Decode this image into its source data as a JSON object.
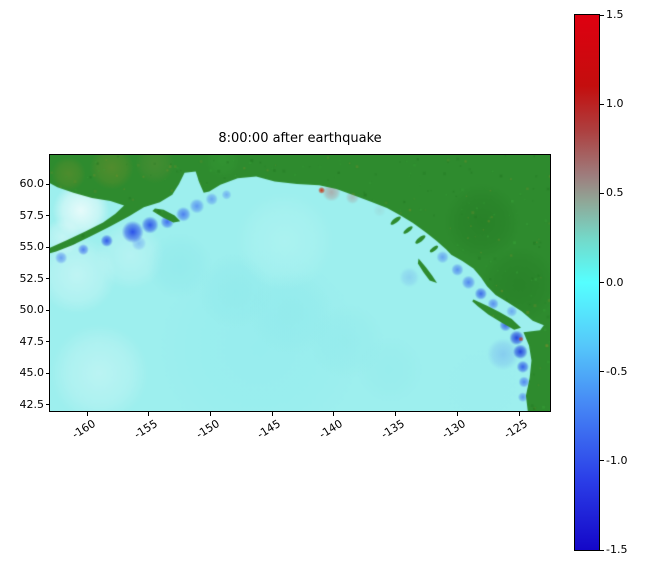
{
  "figure": {
    "title": "8:00:00 after earthquake"
  },
  "chart_data": {
    "type": "heatmap",
    "title": "8:00:00 after earthquake",
    "xlabel": "",
    "ylabel": "",
    "x_ticks": [
      "-160",
      "-155",
      "-150",
      "-145",
      "-140",
      "-135",
      "-130",
      "-125"
    ],
    "y_ticks": [
      "60.0",
      "57.5",
      "55.0",
      "52.5",
      "50.0",
      "47.5",
      "45.0",
      "42.5"
    ],
    "xlim": [
      -163.0,
      -122.5
    ],
    "ylim": [
      42.0,
      62.3
    ],
    "grid": false,
    "legend": "colorbar-right",
    "colorbar": {
      "vmin": -1.5,
      "vmax": 1.5,
      "ticks": [
        "1.5",
        "1.0",
        "0.5",
        "0.0",
        "-0.5",
        "-1.0",
        "-1.5"
      ],
      "stops": [
        {
          "v": 1.5,
          "c": "#de0010"
        },
        {
          "v": 1.1,
          "c": "#c40e0e"
        },
        {
          "v": 0.85,
          "c": "#ad4040"
        },
        {
          "v": 0.6,
          "c": "#9e7d7d"
        },
        {
          "v": 0.45,
          "c": "#8fa898"
        },
        {
          "v": 0.25,
          "c": "#74d8c8"
        },
        {
          "v": 0.0,
          "c": "#55ffff"
        },
        {
          "v": -0.35,
          "c": "#55c8fa"
        },
        {
          "v": -0.7,
          "c": "#4585f5"
        },
        {
          "v": -1.1,
          "c": "#2b3fe8"
        },
        {
          "v": -1.5,
          "c": "#1407c8"
        }
      ]
    },
    "map": {
      "colors": {
        "ocean": "#9defee",
        "land": "#2e8b2e",
        "land_dark": "#1e701e",
        "land_olive": "#7d8f2c",
        "land_light": "#3aa53a"
      },
      "land_polygons": {
        "mainland": [
          [
            -163.0,
            62.3
          ],
          [
            -122.5,
            62.3
          ],
          [
            -122.5,
            42.0
          ],
          [
            -124.3,
            42.0
          ],
          [
            -124.45,
            43.2
          ],
          [
            -124.15,
            44.6
          ],
          [
            -124.0,
            46.0
          ],
          [
            -124.2,
            47.2
          ],
          [
            -124.65,
            48.25
          ],
          [
            -123.3,
            48.4
          ],
          [
            -123.0,
            48.8
          ],
          [
            -123.9,
            49.15
          ],
          [
            -124.8,
            49.9
          ],
          [
            -125.9,
            50.6
          ],
          [
            -126.9,
            51.2
          ],
          [
            -127.6,
            51.9
          ],
          [
            -128.1,
            52.6
          ],
          [
            -128.7,
            53.3
          ],
          [
            -129.6,
            53.9
          ],
          [
            -130.5,
            54.4
          ],
          [
            -130.9,
            54.8
          ],
          [
            -131.7,
            55.5
          ],
          [
            -132.6,
            56.2
          ],
          [
            -133.6,
            56.9
          ],
          [
            -134.6,
            57.5
          ],
          [
            -135.7,
            58.1
          ],
          [
            -137.0,
            58.6
          ],
          [
            -138.4,
            59.1
          ],
          [
            -139.8,
            59.6
          ],
          [
            -141.2,
            59.9
          ],
          [
            -143.0,
            60.0
          ],
          [
            -144.8,
            60.2
          ],
          [
            -146.3,
            60.6
          ],
          [
            -147.8,
            60.45
          ],
          [
            -149.2,
            59.95
          ],
          [
            -150.1,
            59.4
          ],
          [
            -150.55,
            59.3
          ],
          [
            -150.9,
            60.1
          ],
          [
            -151.2,
            61.0
          ],
          [
            -152.1,
            60.9
          ],
          [
            -152.55,
            60.0
          ],
          [
            -153.1,
            59.15
          ],
          [
            -154.1,
            58.55
          ],
          [
            -155.4,
            58.15
          ],
          [
            -156.6,
            57.45
          ],
          [
            -158.1,
            56.65
          ],
          [
            -159.7,
            55.85
          ],
          [
            -161.2,
            55.15
          ],
          [
            -162.5,
            54.65
          ],
          [
            -163.0,
            54.5
          ],
          [
            -163.0,
            54.95
          ],
          [
            -161.6,
            55.55
          ],
          [
            -160.1,
            56.25
          ],
          [
            -158.7,
            56.95
          ],
          [
            -157.7,
            57.65
          ],
          [
            -157.0,
            58.3
          ],
          [
            -158.1,
            58.65
          ],
          [
            -159.6,
            58.9
          ],
          [
            -161.1,
            59.3
          ],
          [
            -162.4,
            59.75
          ],
          [
            -163.0,
            60.05
          ]
        ],
        "vancouver_island": [
          [
            -128.7,
            50.85
          ],
          [
            -127.6,
            50.35
          ],
          [
            -126.6,
            49.85
          ],
          [
            -125.6,
            49.3
          ],
          [
            -124.85,
            48.6
          ],
          [
            -125.4,
            48.45
          ],
          [
            -126.4,
            49.0
          ],
          [
            -127.5,
            49.65
          ],
          [
            -128.35,
            50.3
          ],
          [
            -128.8,
            50.7
          ]
        ],
        "haida_gwaii": [
          [
            -133.15,
            54.1
          ],
          [
            -132.55,
            53.4
          ],
          [
            -132.05,
            52.75
          ],
          [
            -131.65,
            52.15
          ],
          [
            -132.25,
            52.35
          ],
          [
            -132.75,
            53.0
          ],
          [
            -133.2,
            53.7
          ]
        ],
        "kodiak": [
          [
            -154.7,
            57.85
          ],
          [
            -153.85,
            57.35
          ],
          [
            -153.0,
            56.95
          ],
          [
            -152.45,
            57.05
          ],
          [
            -152.9,
            57.5
          ],
          [
            -153.8,
            57.95
          ],
          [
            -154.5,
            58.05
          ]
        ]
      },
      "islets": [
        {
          "x": -135.0,
          "y": 57.1,
          "rx": 0.5,
          "ry": 0.18,
          "rot": -38
        },
        {
          "x": -134.0,
          "y": 56.35,
          "rx": 0.45,
          "ry": 0.16,
          "rot": -38
        },
        {
          "x": -133.0,
          "y": 55.6,
          "rx": 0.5,
          "ry": 0.18,
          "rot": -38
        },
        {
          "x": -131.9,
          "y": 54.85,
          "rx": 0.4,
          "ry": 0.15,
          "rot": -38
        }
      ],
      "texture_blobs": [
        {
          "x": -158.0,
          "y": 61.3,
          "r": 1.8,
          "c": "#7d8f2c",
          "a": 0.45
        },
        {
          "x": -161.5,
          "y": 60.8,
          "r": 1.4,
          "c": "#7d8f2c",
          "a": 0.4
        },
        {
          "x": -154.5,
          "y": 61.6,
          "r": 1.6,
          "c": "#6f8f3a",
          "a": 0.35
        },
        {
          "x": -149.0,
          "y": 61.9,
          "r": 1.5,
          "c": "#3aa53a",
          "a": 0.3
        },
        {
          "x": -128.0,
          "y": 57.0,
          "r": 3.0,
          "c": "#1e701e",
          "a": 0.35
        },
        {
          "x": -125.0,
          "y": 52.0,
          "r": 3.0,
          "c": "#1e701e",
          "a": 0.3
        }
      ],
      "field_blobs": [
        {
          "x": -160.5,
          "y": 57.9,
          "r": 2.3,
          "c": "#ffffff",
          "a": 0.75
        },
        {
          "x": -162.0,
          "y": 55.8,
          "r": 1.5,
          "c": "#ffffff",
          "a": 0.4
        },
        {
          "x": -160.8,
          "y": 52.8,
          "r": 3.2,
          "c": "#ffffff",
          "a": 0.35
        },
        {
          "x": -156.5,
          "y": 54.3,
          "r": 2.8,
          "c": "#ffffff",
          "a": 0.25
        },
        {
          "x": -159.0,
          "y": 45.0,
          "r": 4.0,
          "c": "#ffffff",
          "a": 0.3
        },
        {
          "x": -146.0,
          "y": 47.0,
          "r": 8.0,
          "c": "#93ecee",
          "a": 0.55
        },
        {
          "x": -152.5,
          "y": 53.5,
          "r": 2.6,
          "c": "#8ae6ea",
          "a": 0.45
        },
        {
          "x": -148.0,
          "y": 51.5,
          "r": 3.0,
          "c": "#8ae6ea",
          "a": 0.4
        },
        {
          "x": -143.5,
          "y": 49.8,
          "r": 3.4,
          "c": "#8ae6ea",
          "a": 0.35
        },
        {
          "x": -139.0,
          "y": 47.5,
          "r": 3.0,
          "c": "#8ae6ea",
          "a": 0.3
        },
        {
          "x": -135.5,
          "y": 45.3,
          "r": 2.6,
          "c": "#8ee8ec",
          "a": 0.3
        },
        {
          "x": -144.0,
          "y": 55.5,
          "r": 4.0,
          "c": "#b9f6f4",
          "a": 0.5
        },
        {
          "x": -128.0,
          "y": 44.0,
          "r": 3.0,
          "c": "#9ceef0",
          "a": 0.4
        }
      ],
      "anomaly_blobs": [
        {
          "x": -156.3,
          "y": 56.2,
          "r": 0.9,
          "c": "#1535e8",
          "a": 0.85
        },
        {
          "x": -154.9,
          "y": 56.75,
          "r": 0.7,
          "c": "#1535e8",
          "a": 0.8
        },
        {
          "x": -153.5,
          "y": 57.0,
          "r": 0.55,
          "c": "#2a52f0",
          "a": 0.8
        },
        {
          "x": -152.2,
          "y": 57.6,
          "r": 0.6,
          "c": "#2a52f0",
          "a": 0.7
        },
        {
          "x": -151.1,
          "y": 58.25,
          "r": 0.6,
          "c": "#3a6af2",
          "a": 0.65
        },
        {
          "x": -149.9,
          "y": 58.8,
          "r": 0.5,
          "c": "#3a6af2",
          "a": 0.55
        },
        {
          "x": -158.4,
          "y": 55.5,
          "r": 0.5,
          "c": "#1535e8",
          "a": 0.8
        },
        {
          "x": -160.3,
          "y": 54.8,
          "r": 0.45,
          "c": "#2a52f0",
          "a": 0.7
        },
        {
          "x": -162.1,
          "y": 54.15,
          "r": 0.5,
          "c": "#3a6af2",
          "a": 0.6
        },
        {
          "x": -148.7,
          "y": 59.15,
          "r": 0.4,
          "c": "#4a7cf4",
          "a": 0.55
        },
        {
          "x": -155.8,
          "y": 55.3,
          "r": 0.6,
          "c": "#4a7cf4",
          "a": 0.4
        },
        {
          "x": -140.2,
          "y": 59.35,
          "r": 0.75,
          "c": "#b08d8d",
          "a": 0.65
        },
        {
          "x": -138.5,
          "y": 58.95,
          "r": 0.55,
          "c": "#a89595",
          "a": 0.5
        },
        {
          "x": -141.0,
          "y": 59.5,
          "r": 0.28,
          "c": "#cc2200",
          "a": 0.9
        },
        {
          "x": -136.3,
          "y": 57.9,
          "r": 0.5,
          "c": "#9ad4d4",
          "a": 0.5
        },
        {
          "x": -131.2,
          "y": 54.2,
          "r": 0.5,
          "c": "#3a6af2",
          "a": 0.55
        },
        {
          "x": -130.0,
          "y": 53.2,
          "r": 0.5,
          "c": "#2a52f0",
          "a": 0.6
        },
        {
          "x": -129.1,
          "y": 52.2,
          "r": 0.55,
          "c": "#2a52f0",
          "a": 0.65
        },
        {
          "x": -128.1,
          "y": 51.3,
          "r": 0.5,
          "c": "#1535e8",
          "a": 0.7
        },
        {
          "x": -127.1,
          "y": 50.5,
          "r": 0.45,
          "c": "#2a52f0",
          "a": 0.6
        },
        {
          "x": -133.9,
          "y": 52.6,
          "r": 0.8,
          "c": "#6aa0f0",
          "a": 0.35
        },
        {
          "x": -126.3,
          "y": 46.5,
          "r": 1.3,
          "c": "#5c8ef2",
          "a": 0.35
        },
        {
          "x": -126.1,
          "y": 48.8,
          "r": 0.5,
          "c": "#1535e8",
          "a": 0.7
        },
        {
          "x": -125.6,
          "y": 49.9,
          "r": 0.45,
          "c": "#3a6af2",
          "a": 0.5
        },
        {
          "x": -125.2,
          "y": 47.8,
          "r": 0.6,
          "c": "#0f28dc",
          "a": 0.85
        },
        {
          "x": -124.9,
          "y": 46.7,
          "r": 0.6,
          "c": "#0f28dc",
          "a": 0.85
        },
        {
          "x": -124.7,
          "y": 45.5,
          "r": 0.5,
          "c": "#1535e8",
          "a": 0.75
        },
        {
          "x": -124.6,
          "y": 44.3,
          "r": 0.45,
          "c": "#2a52f0",
          "a": 0.65
        },
        {
          "x": -124.7,
          "y": 43.1,
          "r": 0.4,
          "c": "#2a52f0",
          "a": 0.55
        },
        {
          "x": -124.85,
          "y": 47.7,
          "r": 0.2,
          "c": "#cc3311",
          "a": 0.85
        }
      ]
    }
  }
}
